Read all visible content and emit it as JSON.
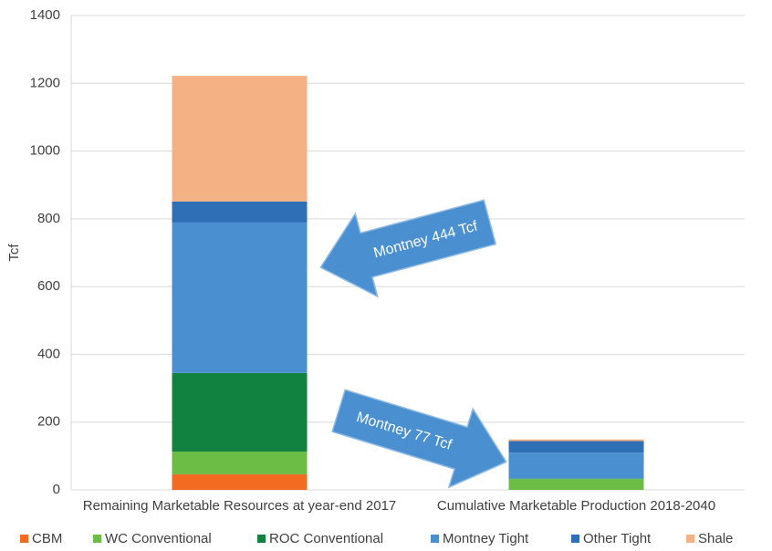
{
  "chart_data": {
    "type": "stacked-bar",
    "y_label": "Tcf",
    "categories": [
      "Remaining Marketable Resources at year-end 2017",
      "Cumulative Marketable Production 2018-2040"
    ],
    "series": [
      {
        "name": "CBM",
        "color": "#f26b21",
        "values": [
          46,
          0
        ]
      },
      {
        "name": "WC Conventional",
        "color": "#6cbd45",
        "values": [
          67,
          32
        ]
      },
      {
        "name": "ROC Conventional",
        "color": "#118240",
        "values": [
          232,
          1
        ]
      },
      {
        "name": "Montney Tight",
        "color": "#4a90d0",
        "values": [
          444,
          77
        ]
      },
      {
        "name": "Other Tight",
        "color": "#2e6fb5",
        "values": [
          62,
          34
        ]
      },
      {
        "name": "Shale",
        "color": "#f4b183",
        "values": [
          371,
          5
        ]
      }
    ],
    "ylim": [
      0,
      1400
    ],
    "yticks": [
      0,
      200,
      400,
      600,
      800,
      1000,
      1200,
      1400
    ],
    "grid": true,
    "annotations": [
      "Montney 444 Tcf",
      "Montney 77 Tcf"
    ]
  }
}
